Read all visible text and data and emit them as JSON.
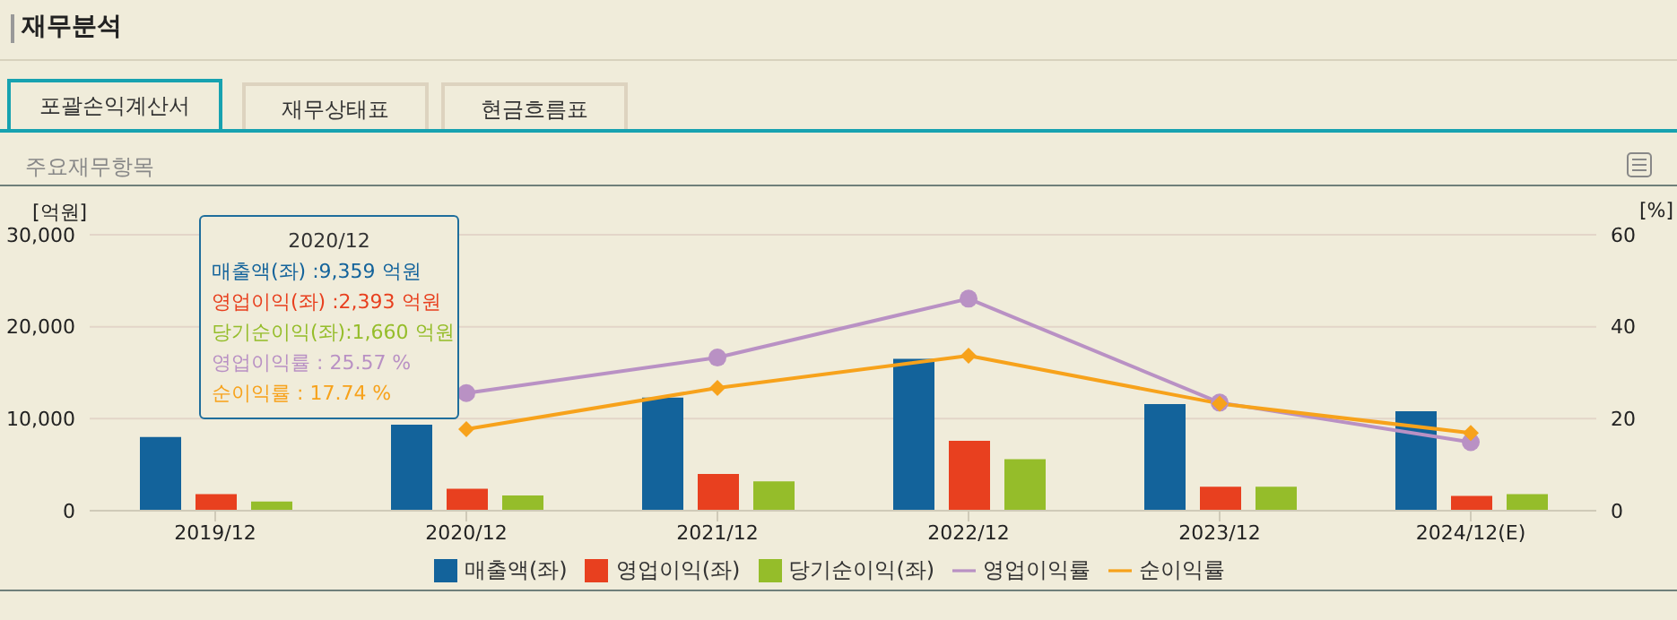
{
  "chart_data": {
    "type": "bar",
    "title": "재무분석",
    "subtitle": "주요재무항목",
    "annotations": [
      "포괄손익계산서",
      "재무상태표",
      "현금흐름표",
      "2020/12",
      "매출액(좌) :9,359 억원",
      "영업이익(좌) :2,393 억원",
      "당기순이익(좌):1,660 억원",
      "영업이익률 :  25.57 %",
      "순이익률 :  17.74 %"
    ],
    "ylabel": "[억원]",
    "y2label": "[%]",
    "categories": [
      "2019/12",
      "2020/12",
      "2021/12",
      "2022/12",
      "2023/12",
      "2024/12(E)"
    ],
    "series": [
      {
        "name": "매출액(좌)",
        "color": "#13639b",
        "values": [
          8000,
          9359,
          12300,
          16500,
          11600,
          10800
        ]
      },
      {
        "name": "영업이익(좌)",
        "color": "#e8401f",
        "values": [
          1800,
          2393,
          4000,
          7600,
          2600,
          1600
        ]
      },
      {
        "name": "당기순이익(좌)",
        "color": "#95bd2a",
        "values": [
          1000,
          1660,
          3200,
          5600,
          2600,
          1800
        ]
      },
      {
        "name": "영업이익률",
        "type": "line",
        "axis": "y2",
        "marker": "circle",
        "color": "#b991c4",
        "values": [
          null,
          25.57,
          33.3,
          46.1,
          23.5,
          14.9
        ]
      },
      {
        "name": "순이익률",
        "type": "line",
        "axis": "y2",
        "marker": "diamond",
        "color": "#f7a21b",
        "values": [
          null,
          17.74,
          26.7,
          33.7,
          23.3,
          16.9
        ]
      }
    ],
    "ylim": [
      0,
      30000
    ],
    "yticks": [
      0,
      {
        "value": 10000,
        "label": "10,000"
      },
      {
        "value": 20000,
        "label": "20,000"
      },
      {
        "value": 30000,
        "label": "30,000"
      }
    ],
    "y2lim": [
      0,
      60
    ],
    "y2ticks": [
      0,
      20,
      40,
      60
    ],
    "grid": "y",
    "legend": "bottom"
  }
}
